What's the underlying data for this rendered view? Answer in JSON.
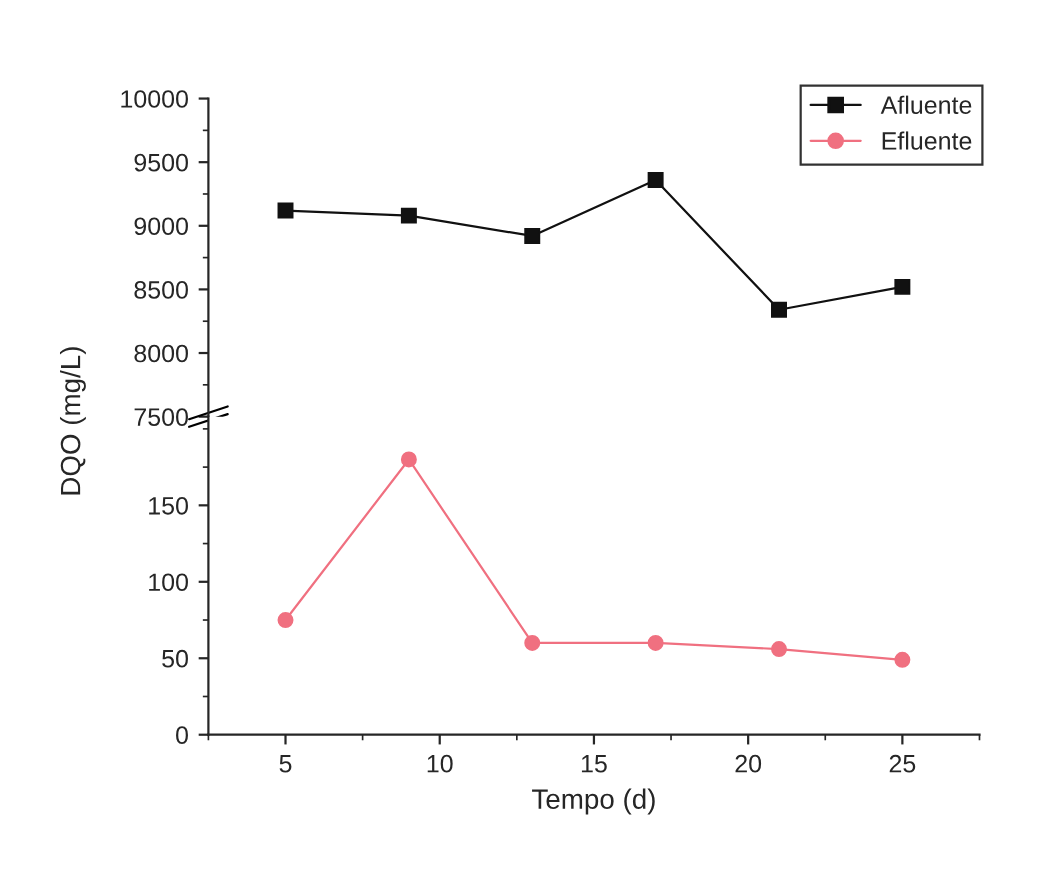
{
  "chart_data": [
    {
      "type": "line",
      "x": [
        5,
        9,
        13,
        17,
        21,
        25
      ],
      "xlim": [
        2.5,
        27.5
      ],
      "ylim": [
        7500,
        10000
      ],
      "yticks": [
        7500,
        8000,
        8500,
        9000,
        9500,
        10000
      ],
      "tick_labels": "y",
      "legend": "top right",
      "grid": false,
      "series": [
        {
          "name": "Afluente",
          "color": "#111111",
          "marker": "square",
          "values": [
            9120,
            9080,
            8920,
            9360,
            8340,
            8520
          ]
        }
      ]
    },
    {
      "type": "line",
      "x": [
        5,
        9,
        13,
        17,
        21,
        25
      ],
      "xlim": [
        2.5,
        27.5
      ],
      "xticks": [
        5,
        10,
        15,
        20,
        25
      ],
      "ylim": [
        0,
        208
      ],
      "yticks": [
        0,
        50,
        100,
        150
      ],
      "xlabel": "Tempo (d)",
      "ylabel": "DQO (mg/L)",
      "grid": false,
      "series": [
        {
          "name": "Efluente",
          "color": "#f07080",
          "marker": "circle",
          "values": [
            75,
            180,
            60,
            60,
            56,
            49
          ]
        }
      ]
    }
  ]
}
